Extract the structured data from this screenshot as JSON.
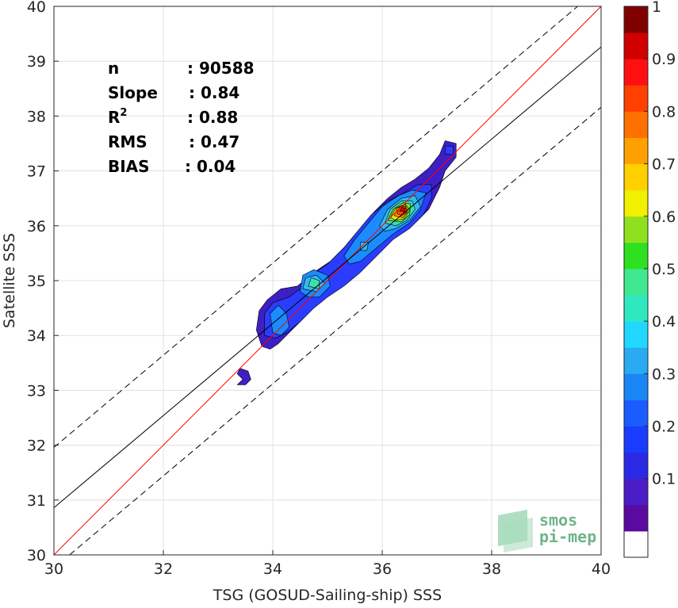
{
  "chart_data": {
    "type": "contour",
    "xlabel": "TSG (GOSUD-Sailing-ship) SSS",
    "ylabel": "Satellite SSS",
    "xlim": [
      30,
      40
    ],
    "ylim": [
      30,
      40
    ],
    "xticks": [
      "30",
      "32",
      "34",
      "36",
      "38",
      "40"
    ],
    "yticks": [
      "30",
      "31",
      "32",
      "33",
      "34",
      "35",
      "36",
      "37",
      "38",
      "39",
      "40"
    ],
    "grid": true,
    "stats": [
      {
        "name": "n",
        "value": ": 90588"
      },
      {
        "name": "Slope",
        "value": ": 0.84"
      },
      {
        "name": "R",
        "sup": "2",
        "value": ": 0.88"
      },
      {
        "name": "RMS",
        "value": ": 0.47"
      },
      {
        "name": "BIAS",
        "value": ": 0.04"
      }
    ],
    "lines": [
      {
        "name": "identity",
        "color": "#ff0000",
        "style": "solid",
        "x": [
          30,
          40
        ],
        "y": [
          30,
          40
        ]
      },
      {
        "name": "fit",
        "color": "#000000",
        "style": "solid",
        "x": [
          30,
          40
        ],
        "y": [
          30.86,
          39.26
        ]
      },
      {
        "name": "fit+2rms",
        "color": "#000000",
        "style": "dashed",
        "x": [
          30,
          40
        ],
        "y": [
          31.96,
          40.36
        ]
      },
      {
        "name": "fit-2rms",
        "color": "#000000",
        "style": "dashed",
        "x": [
          30,
          40
        ],
        "y": [
          29.76,
          38.16
        ]
      }
    ],
    "contours": [
      {
        "level": 0.05,
        "color": "#3d1fc4",
        "points": [
          [
            33.45,
            33.2
          ],
          [
            33.35,
            33.3
          ],
          [
            33.4,
            33.4
          ],
          [
            33.55,
            33.35
          ],
          [
            33.6,
            33.2
          ],
          [
            33.5,
            33.1
          ],
          [
            33.35,
            33.1
          ]
        ]
      },
      {
        "level": 0.05,
        "color": "#3d1fc4",
        "points": [
          [
            33.8,
            33.8
          ],
          [
            33.7,
            34.1
          ],
          [
            33.75,
            34.45
          ],
          [
            33.9,
            34.65
          ],
          [
            34.15,
            34.85
          ],
          [
            34.45,
            34.9
          ],
          [
            34.75,
            35.15
          ],
          [
            35.05,
            35.35
          ],
          [
            35.35,
            35.65
          ],
          [
            35.6,
            35.95
          ],
          [
            35.85,
            36.25
          ],
          [
            36.1,
            36.5
          ],
          [
            36.35,
            36.7
          ],
          [
            36.6,
            36.85
          ],
          [
            36.85,
            37.05
          ],
          [
            37.05,
            37.3
          ],
          [
            37.15,
            37.55
          ],
          [
            37.35,
            37.5
          ],
          [
            37.35,
            37.25
          ],
          [
            37.15,
            37.0
          ],
          [
            37.05,
            36.7
          ],
          [
            36.85,
            36.3
          ],
          [
            36.6,
            36.05
          ],
          [
            36.3,
            35.85
          ],
          [
            36.0,
            35.6
          ],
          [
            35.7,
            35.3
          ],
          [
            35.35,
            35.0
          ],
          [
            35.05,
            34.8
          ],
          [
            34.8,
            34.6
          ],
          [
            34.55,
            34.3
          ],
          [
            34.3,
            34.05
          ],
          [
            34.1,
            33.85
          ],
          [
            33.95,
            33.75
          ]
        ]
      },
      {
        "level": 0.15,
        "color": "#2a3dff",
        "points": [
          [
            33.85,
            34.0
          ],
          [
            33.85,
            34.4
          ],
          [
            34.0,
            34.6
          ],
          [
            34.3,
            34.7
          ],
          [
            34.5,
            34.85
          ],
          [
            34.7,
            35.1
          ],
          [
            35.0,
            35.3
          ],
          [
            35.3,
            35.6
          ],
          [
            35.55,
            35.9
          ],
          [
            35.8,
            36.2
          ],
          [
            36.1,
            36.45
          ],
          [
            36.4,
            36.6
          ],
          [
            36.65,
            36.75
          ],
          [
            36.9,
            36.75
          ],
          [
            36.9,
            36.5
          ],
          [
            36.75,
            36.2
          ],
          [
            36.5,
            35.95
          ],
          [
            36.2,
            35.75
          ],
          [
            35.9,
            35.45
          ],
          [
            35.6,
            35.15
          ],
          [
            35.3,
            34.9
          ],
          [
            35.0,
            34.7
          ],
          [
            34.75,
            34.5
          ],
          [
            34.5,
            34.25
          ],
          [
            34.25,
            34.05
          ],
          [
            34.05,
            33.95
          ]
        ]
      },
      {
        "level": 0.15,
        "color": "#2a3dff",
        "points": [
          [
            37.15,
            37.3
          ],
          [
            37.15,
            37.45
          ],
          [
            37.3,
            37.45
          ],
          [
            37.3,
            37.3
          ]
        ]
      },
      {
        "level": 0.25,
        "color": "#1a8cff",
        "points": [
          [
            34.0,
            34.05
          ],
          [
            33.95,
            34.4
          ],
          [
            34.1,
            34.55
          ],
          [
            34.25,
            34.4
          ],
          [
            34.3,
            34.15
          ],
          [
            34.15,
            34.0
          ]
        ]
      },
      {
        "level": 0.25,
        "color": "#1a8cff",
        "points": [
          [
            34.5,
            34.8
          ],
          [
            34.55,
            35.1
          ],
          [
            34.75,
            35.2
          ],
          [
            35.0,
            35.1
          ],
          [
            35.05,
            34.9
          ],
          [
            34.85,
            34.7
          ],
          [
            34.65,
            34.7
          ]
        ]
      },
      {
        "level": 0.25,
        "color": "#1a8cff",
        "points": [
          [
            35.3,
            35.45
          ],
          [
            35.5,
            35.75
          ],
          [
            35.75,
            36.05
          ],
          [
            36.0,
            36.35
          ],
          [
            36.3,
            36.55
          ],
          [
            36.55,
            36.65
          ],
          [
            36.8,
            36.6
          ],
          [
            36.7,
            36.3
          ],
          [
            36.5,
            36.05
          ],
          [
            36.2,
            35.85
          ],
          [
            35.9,
            35.6
          ],
          [
            35.6,
            35.35
          ],
          [
            35.4,
            35.3
          ]
        ]
      },
      {
        "level": 0.35,
        "color": "#33b9f0",
        "points": [
          [
            34.55,
            34.85
          ],
          [
            34.6,
            35.05
          ],
          [
            34.8,
            35.1
          ],
          [
            34.95,
            34.95
          ],
          [
            34.8,
            34.8
          ]
        ]
      },
      {
        "level": 0.35,
        "color": "#33b9f0",
        "points": [
          [
            35.6,
            35.55
          ],
          [
            35.6,
            35.7
          ],
          [
            35.75,
            35.7
          ],
          [
            35.72,
            35.55
          ]
        ]
      },
      {
        "level": 0.35,
        "color": "#33b9f0",
        "points": [
          [
            35.95,
            36.0
          ],
          [
            36.1,
            36.3
          ],
          [
            36.35,
            36.5
          ],
          [
            36.6,
            36.55
          ],
          [
            36.7,
            36.35
          ],
          [
            36.5,
            36.1
          ],
          [
            36.25,
            35.95
          ],
          [
            36.05,
            35.9
          ]
        ]
      },
      {
        "level": 0.45,
        "color": "#3de0b0",
        "points": [
          [
            34.65,
            34.9
          ],
          [
            34.7,
            35.05
          ],
          [
            34.85,
            35.0
          ],
          [
            34.85,
            34.85
          ]
        ]
      },
      {
        "level": 0.45,
        "color": "#3de0b0",
        "points": [
          [
            36.05,
            36.05
          ],
          [
            36.15,
            36.3
          ],
          [
            36.35,
            36.45
          ],
          [
            36.55,
            36.45
          ],
          [
            36.6,
            36.3
          ],
          [
            36.45,
            36.1
          ],
          [
            36.25,
            36.0
          ]
        ]
      },
      {
        "level": 0.55,
        "color": "#6ee34a",
        "points": [
          [
            36.1,
            36.1
          ],
          [
            36.2,
            36.3
          ],
          [
            36.38,
            36.42
          ],
          [
            36.52,
            36.4
          ],
          [
            36.5,
            36.2
          ],
          [
            36.35,
            36.07
          ]
        ]
      },
      {
        "level": 0.65,
        "color": "#f5e800",
        "points": [
          [
            36.15,
            36.15
          ],
          [
            36.25,
            36.32
          ],
          [
            36.42,
            36.4
          ],
          [
            36.5,
            36.28
          ],
          [
            36.4,
            36.13
          ],
          [
            36.25,
            36.1
          ]
        ]
      },
      {
        "level": 0.75,
        "color": "#ff9a00",
        "points": [
          [
            36.22,
            36.18
          ],
          [
            36.28,
            36.33
          ],
          [
            36.42,
            36.38
          ],
          [
            36.47,
            36.26
          ],
          [
            36.38,
            36.15
          ]
        ]
      },
      {
        "level": 0.85,
        "color": "#ff4a00",
        "points": [
          [
            36.27,
            36.22
          ],
          [
            36.32,
            36.35
          ],
          [
            36.43,
            36.35
          ],
          [
            36.44,
            36.24
          ],
          [
            36.36,
            36.19
          ]
        ]
      },
      {
        "level": 0.95,
        "color": "#d40000",
        "points": [
          [
            36.32,
            36.27
          ],
          [
            36.36,
            36.34
          ],
          [
            36.42,
            36.32
          ],
          [
            36.41,
            36.25
          ]
        ]
      }
    ],
    "colorbar": {
      "colors": [
        "#ffffff",
        "#5a0aa0",
        "#4b1cc8",
        "#2a2ae6",
        "#1a3cff",
        "#1a5cff",
        "#1a85f5",
        "#2aaaf0",
        "#20d8ff",
        "#30e8c0",
        "#40e890",
        "#2ee020",
        "#90e020",
        "#f0f000",
        "#ffd000",
        "#ffa000",
        "#ff7000",
        "#ff4000",
        "#ff1010",
        "#d00000",
        "#800000"
      ],
      "ticks": [
        {
          "label": "0.1",
          "value": 0.1
        },
        {
          "label": "0.2",
          "value": 0.2
        },
        {
          "label": "0.3",
          "value": 0.3
        },
        {
          "label": "0.4",
          "value": 0.4
        },
        {
          "label": "0.5",
          "value": 0.5
        },
        {
          "label": "0.6",
          "value": 0.6
        },
        {
          "label": "0.7",
          "value": 0.7
        },
        {
          "label": "0.8",
          "value": 0.8
        },
        {
          "label": "0.9",
          "value": 0.9
        },
        {
          "label": "1",
          "value": 1.0
        }
      ]
    },
    "logo": {
      "line1": "smos",
      "line2": "pi-mep"
    }
  }
}
